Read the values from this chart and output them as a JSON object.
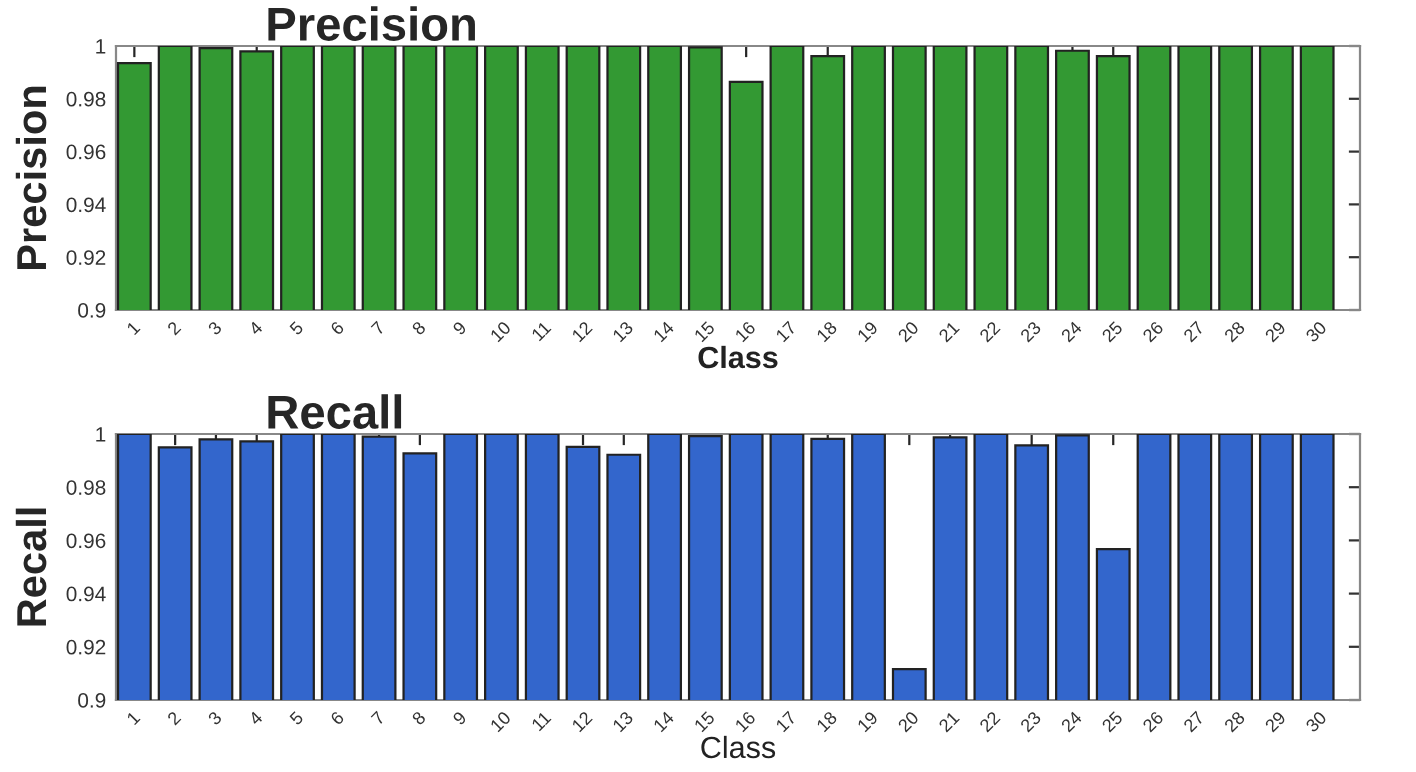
{
  "chart_data": [
    {
      "type": "bar",
      "title": "Precision",
      "xlabel": "Class",
      "ylabel": "Precision",
      "categories": [
        "1",
        "2",
        "3",
        "4",
        "5",
        "6",
        "7",
        "8",
        "9",
        "10",
        "11",
        "12",
        "13",
        "14",
        "15",
        "16",
        "17",
        "18",
        "19",
        "20",
        "21",
        "22",
        "23",
        "24",
        "25",
        "26",
        "27",
        "28",
        "29",
        "30"
      ],
      "series": [
        {
          "color": "#339933",
          "values": [
            0.9935,
            1,
            0.9992,
            0.998,
            1,
            1,
            1,
            1,
            1,
            1,
            1,
            1,
            1,
            1,
            0.9995,
            0.9864,
            1,
            0.9962,
            1,
            1,
            1,
            1,
            1,
            0.9982,
            0.9962,
            1,
            1,
            1,
            1,
            1
          ]
        }
      ],
      "ylim": [
        0.9,
        1
      ],
      "yticks": [
        0.9,
        0.92,
        0.94,
        0.96,
        0.98,
        1
      ],
      "grid": false,
      "legend": false
    },
    {
      "type": "bar",
      "title": "Recall",
      "xlabel": "Class",
      "ylabel": "Recall",
      "categories": [
        "1",
        "2",
        "3",
        "4",
        "5",
        "6",
        "7",
        "8",
        "9",
        "10",
        "11",
        "12",
        "13",
        "14",
        "15",
        "16",
        "17",
        "18",
        "19",
        "20",
        "21",
        "22",
        "23",
        "24",
        "25",
        "26",
        "27",
        "28",
        "29",
        "30"
      ],
      "series": [
        {
          "color": "#3366cc",
          "values": [
            1,
            0.995,
            0.998,
            0.9972,
            1,
            1,
            0.999,
            0.9927,
            1,
            1,
            1,
            0.9952,
            0.9922,
            1,
            0.9992,
            1,
            1,
            0.9982,
            1,
            0.9116,
            0.9987,
            1,
            0.9957,
            0.9995,
            0.9567,
            1,
            1,
            1,
            1,
            1
          ]
        }
      ],
      "ylim": [
        0.9,
        1
      ],
      "yticks": [
        0.9,
        0.92,
        0.94,
        0.96,
        0.98,
        1
      ],
      "grid": false,
      "legend": false
    }
  ]
}
